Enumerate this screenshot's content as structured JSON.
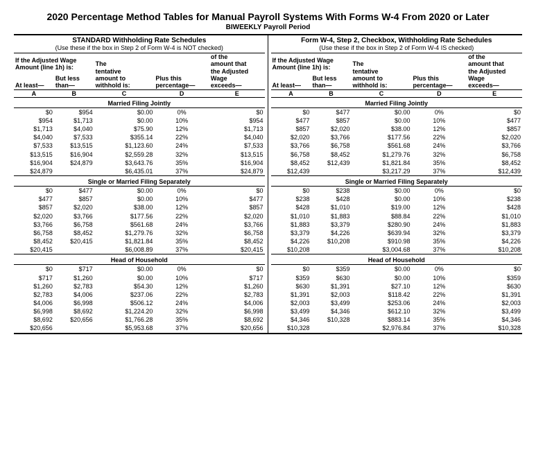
{
  "title": "2020 Percentage Method Tables for Manual Payroll Systems With Forms W-4 From 2020 or Later",
  "subtitle": "BIWEEKLY Payroll Period",
  "left": {
    "schedule_title": "STANDARD Withholding Rate Schedules",
    "schedule_note": "(Use these if the box in Step 2 of Form W-4 is NOT checked)"
  },
  "right": {
    "schedule_title": "Form W-4, Step 2, Checkbox, Withholding Rate Schedules",
    "schedule_note": "(Use these if the box in Step 2 of Form W-4 IS checked)"
  },
  "headers": {
    "h1a": "If the Adjusted Wage",
    "h1b": "Amount (line 1h) is:",
    "h2a": "At least—",
    "h2b": "But less",
    "h2c": "than—",
    "h3a": "The",
    "h3b": "tentative",
    "h3c": "amount to",
    "h3d": "withhold is:",
    "h4a": "Plus this",
    "h4b": "percentage—",
    "h5a": "of the",
    "h5b": "amount that",
    "h5c": "the Adjusted",
    "h5d": "Wage",
    "h5e": "exceeds—",
    "letters": [
      "A",
      "B",
      "C",
      "D",
      "E"
    ]
  },
  "sections": {
    "mfj": "Married Filing Jointly",
    "single": "Single or Married Filing Separately",
    "hoh": "Head of Household"
  },
  "std": {
    "mfj": [
      [
        "$0",
        "$954",
        "$0.00",
        "0%",
        "$0"
      ],
      [
        "$954",
        "$1,713",
        "$0.00",
        "10%",
        "$954"
      ],
      [
        "$1,713",
        "$4,040",
        "$75.90",
        "12%",
        "$1,713"
      ],
      [
        "$4,040",
        "$7,533",
        "$355.14",
        "22%",
        "$4,040"
      ],
      [
        "$7,533",
        "$13,515",
        "$1,123.60",
        "24%",
        "$7,533"
      ],
      [
        "$13,515",
        "$16,904",
        "$2,559.28",
        "32%",
        "$13,515"
      ],
      [
        "$16,904",
        "$24,879",
        "$3,643.76",
        "35%",
        "$16,904"
      ],
      [
        "$24,879",
        "",
        "$6,435.01",
        "37%",
        "$24,879"
      ]
    ],
    "single": [
      [
        "$0",
        "$477",
        "$0.00",
        "0%",
        "$0"
      ],
      [
        "$477",
        "$857",
        "$0.00",
        "10%",
        "$477"
      ],
      [
        "$857",
        "$2,020",
        "$38.00",
        "12%",
        "$857"
      ],
      [
        "$2,020",
        "$3,766",
        "$177.56",
        "22%",
        "$2,020"
      ],
      [
        "$3,766",
        "$6,758",
        "$561.68",
        "24%",
        "$3,766"
      ],
      [
        "$6,758",
        "$8,452",
        "$1,279.76",
        "32%",
        "$6,758"
      ],
      [
        "$8,452",
        "$20,415",
        "$1,821.84",
        "35%",
        "$8,452"
      ],
      [
        "$20,415",
        "",
        "$6,008.89",
        "37%",
        "$20,415"
      ]
    ],
    "hoh": [
      [
        "$0",
        "$717",
        "$0.00",
        "0%",
        "$0"
      ],
      [
        "$717",
        "$1,260",
        "$0.00",
        "10%",
        "$717"
      ],
      [
        "$1,260",
        "$2,783",
        "$54.30",
        "12%",
        "$1,260"
      ],
      [
        "$2,783",
        "$4,006",
        "$237.06",
        "22%",
        "$2,783"
      ],
      [
        "$4,006",
        "$6,998",
        "$506.12",
        "24%",
        "$4,006"
      ],
      [
        "$6,998",
        "$8,692",
        "$1,224.20",
        "32%",
        "$6,998"
      ],
      [
        "$8,692",
        "$20,656",
        "$1,766.28",
        "35%",
        "$8,692"
      ],
      [
        "$20,656",
        "",
        "$5,953.68",
        "37%",
        "$20,656"
      ]
    ]
  },
  "chk": {
    "mfj": [
      [
        "$0",
        "$477",
        "$0.00",
        "0%",
        "$0"
      ],
      [
        "$477",
        "$857",
        "$0.00",
        "10%",
        "$477"
      ],
      [
        "$857",
        "$2,020",
        "$38.00",
        "12%",
        "$857"
      ],
      [
        "$2,020",
        "$3,766",
        "$177.56",
        "22%",
        "$2,020"
      ],
      [
        "$3,766",
        "$6,758",
        "$561.68",
        "24%",
        "$3,766"
      ],
      [
        "$6,758",
        "$8,452",
        "$1,279.76",
        "32%",
        "$6,758"
      ],
      [
        "$8,452",
        "$12,439",
        "$1,821.84",
        "35%",
        "$8,452"
      ],
      [
        "$12,439",
        "",
        "$3,217.29",
        "37%",
        "$12,439"
      ]
    ],
    "single": [
      [
        "$0",
        "$238",
        "$0.00",
        "0%",
        "$0"
      ],
      [
        "$238",
        "$428",
        "$0.00",
        "10%",
        "$238"
      ],
      [
        "$428",
        "$1,010",
        "$19.00",
        "12%",
        "$428"
      ],
      [
        "$1,010",
        "$1,883",
        "$88.84",
        "22%",
        "$1,010"
      ],
      [
        "$1,883",
        "$3,379",
        "$280.90",
        "24%",
        "$1,883"
      ],
      [
        "$3,379",
        "$4,226",
        "$639.94",
        "32%",
        "$3,379"
      ],
      [
        "$4,226",
        "$10,208",
        "$910.98",
        "35%",
        "$4,226"
      ],
      [
        "$10,208",
        "",
        "$3,004.68",
        "37%",
        "$10,208"
      ]
    ],
    "hoh": [
      [
        "$0",
        "$359",
        "$0.00",
        "0%",
        "$0"
      ],
      [
        "$359",
        "$630",
        "$0.00",
        "10%",
        "$359"
      ],
      [
        "$630",
        "$1,391",
        "$27.10",
        "12%",
        "$630"
      ],
      [
        "$1,391",
        "$2,003",
        "$118.42",
        "22%",
        "$1,391"
      ],
      [
        "$2,003",
        "$3,499",
        "$253.06",
        "24%",
        "$2,003"
      ],
      [
        "$3,499",
        "$4,346",
        "$612.10",
        "32%",
        "$3,499"
      ],
      [
        "$4,346",
        "$10,328",
        "$883.14",
        "35%",
        "$4,346"
      ],
      [
        "$10,328",
        "",
        "$2,976.84",
        "37%",
        "$10,328"
      ]
    ]
  }
}
